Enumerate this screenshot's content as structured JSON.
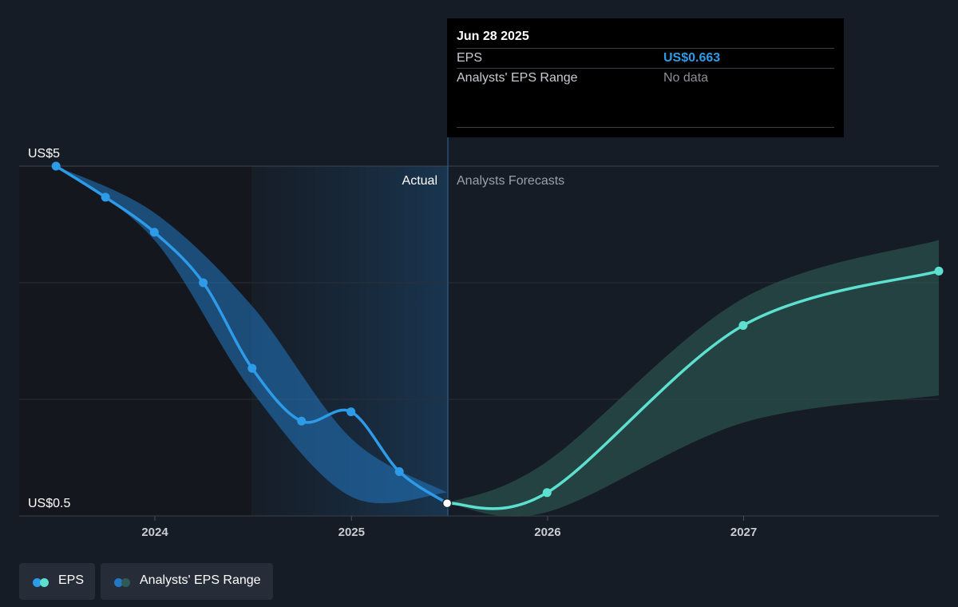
{
  "chart_data": {
    "type": "line",
    "y_axis": {
      "labels": [
        "US$5",
        "US$0.5"
      ],
      "tick_values": [
        5,
        0.5
      ]
    },
    "x_axis": {
      "tick_labels": [
        "2024",
        "2025",
        "2026",
        "2027"
      ]
    },
    "regions": {
      "actual_label": "Actual",
      "forecast_label": "Analysts Forecasts",
      "divider_date": "2025-06-28"
    },
    "series": [
      {
        "name": "EPS",
        "kind": "actual",
        "color": "#2d9be8",
        "points": [
          {
            "x": "2023-07-01",
            "y": 5.0
          },
          {
            "x": "2023-10-01",
            "y": 4.6
          },
          {
            "x": "2023-12-31",
            "y": 4.15
          },
          {
            "x": "2024-03-31",
            "y": 3.5
          },
          {
            "x": "2024-06-30",
            "y": 2.4
          },
          {
            "x": "2024-09-30",
            "y": 1.72
          },
          {
            "x": "2024-12-31",
            "y": 1.84
          },
          {
            "x": "2025-03-31",
            "y": 1.07
          },
          {
            "x": "2025-06-28",
            "y": 0.663
          }
        ]
      },
      {
        "name": "EPS",
        "kind": "forecast",
        "color": "#5de0cf",
        "points": [
          {
            "x": "2025-06-28",
            "y": 0.663
          },
          {
            "x": "2025-12-31",
            "y": 0.8
          },
          {
            "x": "2026-12-31",
            "y": 2.95
          },
          {
            "x": "2027-12-31",
            "y": 3.65
          }
        ]
      }
    ],
    "ranges": [
      {
        "name": "Analysts' EPS Range",
        "kind": "actual",
        "color": "#2378c2",
        "upper": [
          {
            "x": "2023-07-01",
            "y": 5.0
          },
          {
            "x": "2023-12-31",
            "y": 4.4
          },
          {
            "x": "2024-06-30",
            "y": 3.2
          },
          {
            "x": "2024-12-31",
            "y": 1.5
          },
          {
            "x": "2025-06-28",
            "y": 0.8
          }
        ],
        "lower": [
          {
            "x": "2023-07-01",
            "y": 5.0
          },
          {
            "x": "2023-12-31",
            "y": 4.05
          },
          {
            "x": "2024-06-30",
            "y": 2.1
          },
          {
            "x": "2024-12-31",
            "y": 0.75
          },
          {
            "x": "2025-06-28",
            "y": 0.8
          }
        ]
      },
      {
        "name": "Analysts' EPS Range",
        "kind": "forecast",
        "color": "#2f5b57",
        "upper": [
          {
            "x": "2025-06-28",
            "y": 0.663
          },
          {
            "x": "2025-12-31",
            "y": 1.2
          },
          {
            "x": "2026-12-31",
            "y": 3.3
          },
          {
            "x": "2027-12-31",
            "y": 4.05
          }
        ],
        "lower": [
          {
            "x": "2025-06-28",
            "y": 0.663
          },
          {
            "x": "2025-12-31",
            "y": 0.55
          },
          {
            "x": "2026-12-31",
            "y": 1.7
          },
          {
            "x": "2027-12-31",
            "y": 2.05
          }
        ]
      }
    ]
  },
  "tooltip": {
    "date": "Jun 28 2025",
    "rows": [
      {
        "label": "EPS",
        "value": "US$0.663",
        "value_color": "#2d9be8"
      },
      {
        "label": "Analysts' EPS Range",
        "value": "No data",
        "value_color": "#8c9097"
      }
    ]
  },
  "legend": {
    "items": [
      {
        "label": "EPS",
        "colors": [
          "#2d9be8",
          "#5de0cf"
        ]
      },
      {
        "label": "Analysts' EPS Range",
        "colors": [
          "#2378c2",
          "#2f5b57"
        ]
      }
    ]
  }
}
